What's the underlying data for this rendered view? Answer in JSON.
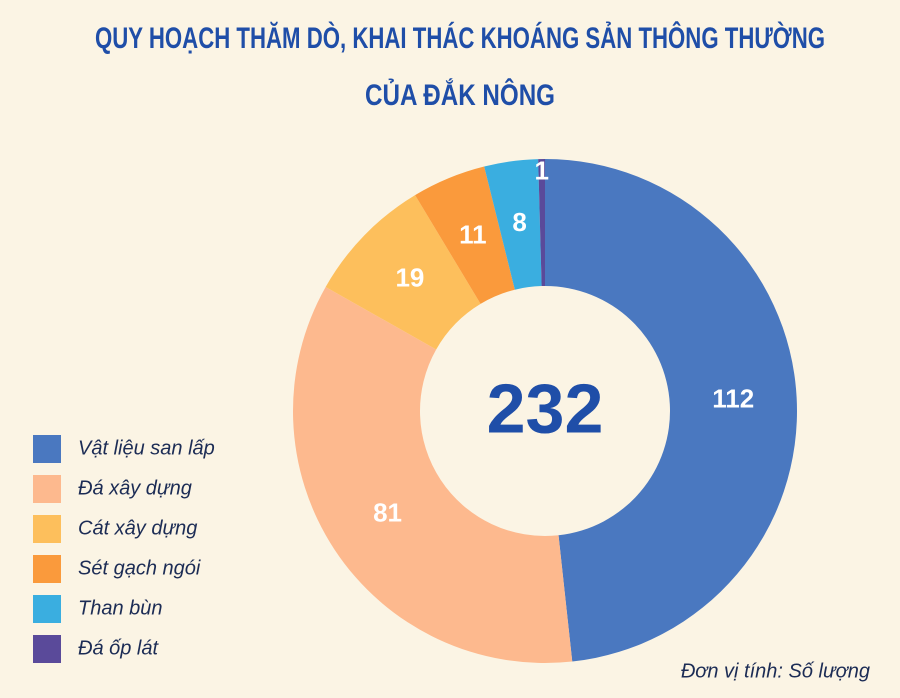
{
  "chart_data": {
    "type": "donut",
    "title": [
      "QUY HOẠCH THĂM DÒ, KHAI THÁC KHOÁNG SẢN THÔNG THƯỜNG",
      "CỦA ĐẮK NÔNG"
    ],
    "total": 232,
    "categories": [
      "Vật liệu san lấp",
      "Đá xây dựng",
      "Cát xây dựng",
      "Sét gạch ngói",
      "Than bùn",
      "Đá ốp lát"
    ],
    "values": [
      112,
      81,
      19,
      11,
      8,
      1
    ],
    "colors": [
      "#4a78c0",
      "#fdb98e",
      "#fdbf5c",
      "#fa9a3c",
      "#3aaee0",
      "#5a4a9a"
    ],
    "legend": "left",
    "note": "Đơn vị tính: Số lượng"
  }
}
